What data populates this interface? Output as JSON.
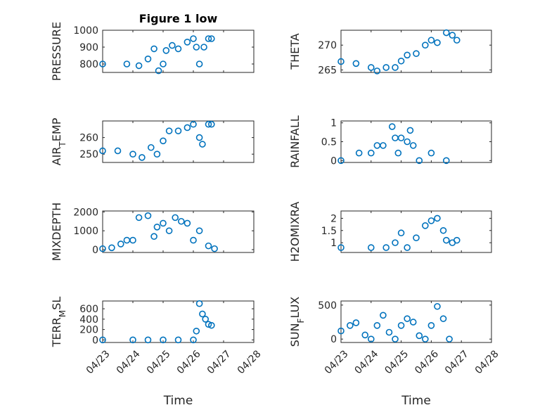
{
  "figure_title": "Figure 1 low",
  "colors": {
    "marker": "#0072BD",
    "axis": "#262626",
    "grid": "#d0d0d0"
  },
  "chart_data": [
    {
      "type": "scatter",
      "id": "pressure",
      "title": "Figure 1 low",
      "ylabel": "PRESSURE",
      "ylim": [
        750,
        1000
      ],
      "yticks": [
        800,
        900,
        1000
      ],
      "ytick_labels": [
        "800",
        "900",
        "1000"
      ],
      "xlim": [
        0,
        5
      ],
      "xticks": [
        0,
        1,
        2,
        3,
        4,
        5
      ],
      "xtick_labels": [
        "04/23",
        "04/24",
        "04/25",
        "04/26",
        "04/27",
        "04/28"
      ],
      "show_xticklabels": false,
      "grid": true,
      "points": [
        [
          0,
          800
        ],
        [
          0.8,
          800
        ],
        [
          1.2,
          790
        ],
        [
          1.5,
          830
        ],
        [
          1.7,
          890
        ],
        [
          1.85,
          760
        ],
        [
          2.0,
          800
        ],
        [
          2.1,
          880
        ],
        [
          2.3,
          910
        ],
        [
          2.5,
          890
        ],
        [
          2.8,
          930
        ],
        [
          3.0,
          950
        ],
        [
          3.1,
          900
        ],
        [
          3.2,
          800
        ],
        [
          3.35,
          900
        ],
        [
          3.5,
          950
        ],
        [
          3.6,
          950
        ]
      ]
    },
    {
      "type": "scatter",
      "id": "theta",
      "ylabel": "THETA",
      "ylim": [
        264.5,
        273
      ],
      "yticks": [
        265,
        270
      ],
      "ytick_labels": [
        "265",
        "270"
      ],
      "xlim": [
        0,
        5
      ],
      "xticks": [
        0,
        1,
        2,
        3,
        4,
        5
      ],
      "xtick_labels": [
        "04/23",
        "04/24",
        "04/25",
        "04/26",
        "04/27",
        "04/28"
      ],
      "show_xticklabels": false,
      "grid": true,
      "points": [
        [
          0,
          266.7
        ],
        [
          0.5,
          266.3
        ],
        [
          1.0,
          265.5
        ],
        [
          1.2,
          264.8
        ],
        [
          1.5,
          265.5
        ],
        [
          1.8,
          265.5
        ],
        [
          2.0,
          266.8
        ],
        [
          2.2,
          268
        ],
        [
          2.5,
          268.3
        ],
        [
          2.8,
          270
        ],
        [
          3.0,
          271
        ],
        [
          3.2,
          270.5
        ],
        [
          3.5,
          272.5
        ],
        [
          3.7,
          272
        ],
        [
          3.85,
          271
        ]
      ]
    },
    {
      "type": "scatter",
      "id": "air_temp",
      "ylabel": "AIR_TEMP",
      "ylim": [
        245,
        270
      ],
      "yticks": [
        250,
        260
      ],
      "ytick_labels": [
        "250",
        "260"
      ],
      "xlim": [
        0,
        5
      ],
      "xticks": [
        0,
        1,
        2,
        3,
        4,
        5
      ],
      "xtick_labels": [
        "04/23",
        "04/24",
        "04/25",
        "04/26",
        "04/27",
        "04/28"
      ],
      "show_xticklabels": false,
      "grid": true,
      "points": [
        [
          0,
          252
        ],
        [
          0.5,
          252
        ],
        [
          1.0,
          250
        ],
        [
          1.3,
          248
        ],
        [
          1.6,
          254
        ],
        [
          1.8,
          250
        ],
        [
          2.0,
          258
        ],
        [
          2.2,
          264
        ],
        [
          2.5,
          264
        ],
        [
          2.8,
          266
        ],
        [
          3.0,
          268
        ],
        [
          3.2,
          260
        ],
        [
          3.3,
          256
        ],
        [
          3.5,
          268
        ],
        [
          3.6,
          268
        ]
      ]
    },
    {
      "type": "scatter",
      "id": "rainfall",
      "ylabel": "RAINFALL",
      "ylim": [
        -0.05,
        1.05
      ],
      "yticks": [
        0,
        0.5,
        1
      ],
      "ytick_labels": [
        "0",
        "0.5",
        "1"
      ],
      "xlim": [
        0,
        5
      ],
      "xticks": [
        0,
        1,
        2,
        3,
        4,
        5
      ],
      "xtick_labels": [
        "04/23",
        "04/24",
        "04/25",
        "04/26",
        "04/27",
        "04/28"
      ],
      "show_xticklabels": false,
      "grid": true,
      "points": [
        [
          0,
          0
        ],
        [
          0.6,
          0.2
        ],
        [
          1.0,
          0.2
        ],
        [
          1.2,
          0.4
        ],
        [
          1.4,
          0.4
        ],
        [
          1.7,
          0.9
        ],
        [
          1.8,
          0.6
        ],
        [
          1.9,
          0.2
        ],
        [
          2.0,
          0.6
        ],
        [
          2.2,
          0.5
        ],
        [
          2.3,
          0.8
        ],
        [
          2.4,
          0.4
        ],
        [
          2.6,
          0
        ],
        [
          3.0,
          0.2
        ],
        [
          3.5,
          0
        ]
      ]
    },
    {
      "type": "scatter",
      "id": "mixdepth",
      "ylabel": "MIXDEPTH",
      "ylim": [
        -150,
        2050
      ],
      "yticks": [
        0,
        1000,
        2000
      ],
      "ytick_labels": [
        "0",
        "1000",
        "2000"
      ],
      "xlim": [
        0,
        5
      ],
      "xticks": [
        0,
        1,
        2,
        3,
        4,
        5
      ],
      "xtick_labels": [
        "04/23",
        "04/24",
        "04/25",
        "04/26",
        "04/27",
        "04/28"
      ],
      "show_xticklabels": false,
      "grid": true,
      "points": [
        [
          0,
          50
        ],
        [
          0.3,
          100
        ],
        [
          0.6,
          300
        ],
        [
          0.8,
          500
        ],
        [
          1.0,
          500
        ],
        [
          1.2,
          1700
        ],
        [
          1.5,
          1800
        ],
        [
          1.7,
          700
        ],
        [
          1.8,
          1200
        ],
        [
          2.0,
          1400
        ],
        [
          2.2,
          1000
        ],
        [
          2.4,
          1700
        ],
        [
          2.6,
          1500
        ],
        [
          2.8,
          1400
        ],
        [
          3.0,
          500
        ],
        [
          3.2,
          1000
        ],
        [
          3.5,
          200
        ],
        [
          3.7,
          50
        ]
      ]
    },
    {
      "type": "scatter",
      "id": "h2omixra",
      "ylabel": "H2OMIXRA",
      "ylim": [
        0.6,
        2.3
      ],
      "yticks": [
        1,
        1.5,
        2
      ],
      "ytick_labels": [
        "1",
        "1.5",
        "2"
      ],
      "xlim": [
        0,
        5
      ],
      "xticks": [
        0,
        1,
        2,
        3,
        4,
        5
      ],
      "xtick_labels": [
        "04/23",
        "04/24",
        "04/25",
        "04/26",
        "04/27",
        "04/28"
      ],
      "show_xticklabels": false,
      "grid": true,
      "points": [
        [
          0,
          0.8
        ],
        [
          1.0,
          0.8
        ],
        [
          1.5,
          0.8
        ],
        [
          1.8,
          1.0
        ],
        [
          2.0,
          1.4
        ],
        [
          2.2,
          0.8
        ],
        [
          2.5,
          1.2
        ],
        [
          2.8,
          1.7
        ],
        [
          3.0,
          1.9
        ],
        [
          3.2,
          2.0
        ],
        [
          3.4,
          1.5
        ],
        [
          3.5,
          1.1
        ],
        [
          3.7,
          1.0
        ],
        [
          3.85,
          1.1
        ]
      ]
    },
    {
      "type": "scatter",
      "id": "terr_msl",
      "ylabel": "TERR_MSL",
      "ylim": [
        -50,
        750
      ],
      "yticks": [
        0,
        200,
        400,
        600
      ],
      "ytick_labels": [
        "0",
        "200",
        "400",
        "600"
      ],
      "xlim": [
        0,
        5
      ],
      "xticks": [
        0,
        1,
        2,
        3,
        4,
        5
      ],
      "xtick_labels": [
        "04/23",
        "04/24",
        "04/25",
        "04/26",
        "04/27",
        "04/28"
      ],
      "show_xticklabels": true,
      "grid": true,
      "xlabel": "Time",
      "points": [
        [
          0,
          0
        ],
        [
          1.0,
          0
        ],
        [
          1.5,
          0
        ],
        [
          2.0,
          0
        ],
        [
          2.5,
          0
        ],
        [
          3.0,
          0
        ],
        [
          3.1,
          170
        ],
        [
          3.2,
          700
        ],
        [
          3.3,
          500
        ],
        [
          3.4,
          400
        ],
        [
          3.5,
          300
        ],
        [
          3.6,
          280
        ]
      ]
    },
    {
      "type": "scatter",
      "id": "sun_flux",
      "ylabel": "SUN_FLUX",
      "ylim": [
        -50,
        560
      ],
      "yticks": [
        0,
        500
      ],
      "ytick_labels": [
        "0",
        "500"
      ],
      "xlim": [
        0,
        5
      ],
      "xticks": [
        0,
        1,
        2,
        3,
        4,
        5
      ],
      "xtick_labels": [
        "04/23",
        "04/24",
        "04/25",
        "04/26",
        "04/27",
        "04/28"
      ],
      "show_xticklabels": true,
      "grid": true,
      "xlabel": "Time",
      "points": [
        [
          0,
          120
        ],
        [
          0.3,
          200
        ],
        [
          0.5,
          240
        ],
        [
          0.8,
          60
        ],
        [
          1.0,
          0
        ],
        [
          1.2,
          200
        ],
        [
          1.4,
          350
        ],
        [
          1.6,
          100
        ],
        [
          1.8,
          0
        ],
        [
          2.0,
          200
        ],
        [
          2.2,
          300
        ],
        [
          2.4,
          250
        ],
        [
          2.6,
          50
        ],
        [
          2.8,
          0
        ],
        [
          3.0,
          200
        ],
        [
          3.2,
          480
        ],
        [
          3.4,
          300
        ],
        [
          3.6,
          0
        ]
      ]
    }
  ]
}
